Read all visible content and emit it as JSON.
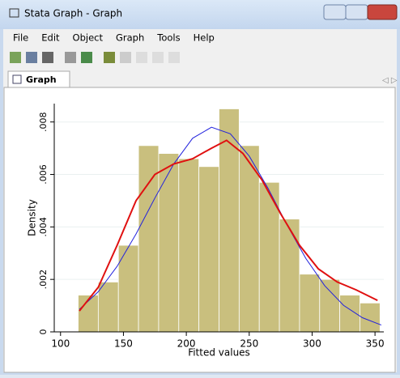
{
  "window": {
    "title": "Stata Graph - Graph",
    "menu": [
      "File",
      "Edit",
      "Object",
      "Graph",
      "Tools",
      "Help"
    ],
    "tab": "Graph"
  },
  "chart_data": {
    "type": "histogram",
    "bins": [
      114,
      130,
      146,
      162,
      178,
      194,
      210,
      226,
      242,
      258,
      274,
      290,
      306,
      322,
      338,
      354
    ],
    "values": [
      0.0014,
      0.0019,
      0.0033,
      0.0071,
      0.0068,
      0.0066,
      0.0063,
      0.0085,
      0.0071,
      0.0057,
      0.0043,
      0.0022,
      0.002,
      0.0014,
      0.0011
    ],
    "color": "#c9bf7e",
    "xlabel": "Fitted values",
    "ylabel": "Density",
    "xlim": [
      95,
      357
    ],
    "ylim": [
      0,
      0.0087
    ],
    "xticks": [
      100,
      150,
      200,
      250,
      300,
      350
    ],
    "yticks": [
      0,
      {
        "value": 0.002,
        "label": ".002"
      },
      {
        "value": 0.004,
        "label": ".004"
      },
      {
        "value": 0.006,
        "label": ".006"
      },
      {
        "value": 0.008,
        "label": ".008"
      }
    ],
    "lines": [
      {
        "color": "#2222dd",
        "x": [
          115,
          130,
          145,
          160,
          175,
          190,
          205,
          220,
          235,
          250,
          265,
          280,
          295,
          310,
          325,
          340,
          355
        ],
        "values": [
          0.00086,
          0.00153,
          0.0025,
          0.00373,
          0.0051,
          0.0064,
          0.00738,
          0.0078,
          0.00755,
          0.0067,
          0.00547,
          0.00408,
          0.0028,
          0.00176,
          0.00101,
          0.00054,
          0.00026
        ]
      },
      {
        "color": "#e01010",
        "x": [
          115,
          130,
          145,
          160,
          175,
          190,
          205,
          220,
          232,
          245,
          260,
          275,
          290,
          305,
          320,
          335,
          352
        ],
        "values": [
          0.0008,
          0.0017,
          0.0033,
          0.005,
          0.006,
          0.0064,
          0.0066,
          0.007,
          0.0073,
          0.0068,
          0.0058,
          0.0045,
          0.0033,
          0.0024,
          0.0019,
          0.0016,
          0.0012
        ]
      }
    ]
  }
}
